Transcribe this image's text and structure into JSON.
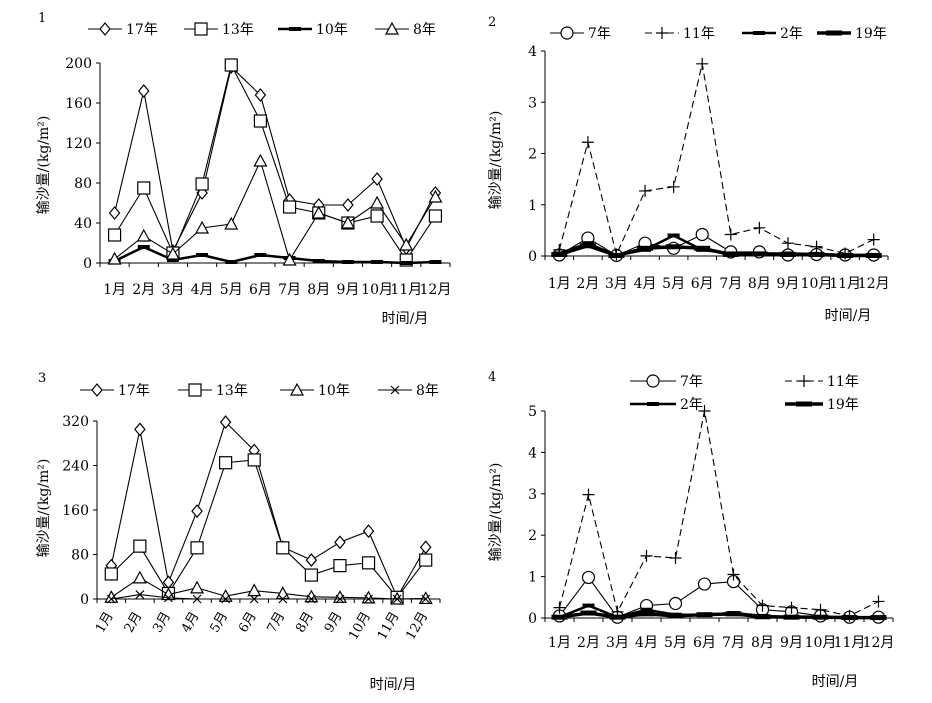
{
  "chart_data": [
    {
      "panel": "1",
      "type": "line",
      "categories": [
        "1月",
        "2月",
        "3月",
        "4月",
        "5月",
        "6月",
        "7月",
        "8月",
        "9月",
        "10月",
        "11月",
        "12月"
      ],
      "xlabel": "时间/月",
      "ylabel": "输沙量/(kg/m²)",
      "ylim": [
        0,
        200
      ],
      "yticks": [
        "0",
        "40",
        "80",
        "120",
        "160",
        "200"
      ],
      "legend_position": "top",
      "series": [
        {
          "name": "17年",
          "marker": "diamond",
          "values": [
            50,
            172,
            12,
            70,
            196,
            168,
            63,
            58,
            58,
            84,
            15,
            70
          ]
        },
        {
          "name": "13年",
          "marker": "square",
          "values": [
            28,
            75,
            10,
            79,
            198,
            142,
            56,
            50,
            40,
            47,
            3,
            47
          ]
        },
        {
          "name": "10年",
          "marker": "dash",
          "values": [
            2,
            16,
            3,
            8,
            1,
            8,
            5,
            2,
            1,
            1,
            0,
            1
          ]
        },
        {
          "name": "8年",
          "marker": "triangle",
          "values": [
            4,
            27,
            9,
            35,
            39,
            102,
            3,
            50,
            40,
            60,
            18,
            66
          ]
        }
      ]
    },
    {
      "panel": "2",
      "type": "line",
      "categories": [
        "1月",
        "2月",
        "3月",
        "4月",
        "5月",
        "6月",
        "7月",
        "8月",
        "9月",
        "10月",
        "11月",
        "12月"
      ],
      "xlabel": "时间/月",
      "ylabel": "输沙量/(kg/m²)",
      "ylim": [
        0,
        4
      ],
      "yticks": [
        "0",
        "1",
        "2",
        "3",
        "4"
      ],
      "legend_position": "top",
      "series": [
        {
          "name": "7年",
          "marker": "circle",
          "values": [
            0.02,
            0.35,
            0.01,
            0.25,
            0.15,
            0.42,
            0.08,
            0.08,
            0.02,
            0.03,
            0.02,
            0.02
          ]
        },
        {
          "name": "11年",
          "marker": "plus",
          "values": [
            0.12,
            2.22,
            0.03,
            1.27,
            1.35,
            3.75,
            0.42,
            0.55,
            0.25,
            0.18,
            0.05,
            0.32
          ]
        },
        {
          "name": "2年",
          "marker": "dash",
          "values": [
            0.05,
            0.25,
            0.01,
            0.12,
            0.4,
            0.12,
            0.05,
            0.05,
            0.05,
            0.04,
            0.02,
            0.02
          ]
        },
        {
          "name": "19年",
          "marker": "bar",
          "values": [
            0.03,
            0.2,
            0.01,
            0.15,
            0.18,
            0.15,
            0.03,
            0.04,
            0.03,
            0.03,
            0.01,
            0.01
          ]
        }
      ]
    },
    {
      "panel": "3",
      "type": "line",
      "categories": [
        "1月",
        "2月",
        "3月",
        "4月",
        "5月",
        "6月",
        "7月",
        "8月",
        "9月",
        "10月",
        "11月",
        "12月"
      ],
      "xlabel": "时间/月",
      "ylabel": "输沙量/(kg/m²)",
      "ylim": [
        0,
        320
      ],
      "yticks": [
        "0",
        "80",
        "160",
        "240",
        "320"
      ],
      "legend_position": "top",
      "series": [
        {
          "name": "17年",
          "marker": "diamond",
          "values": [
            60,
            305,
            30,
            158,
            318,
            267,
            93,
            70,
            102,
            122,
            3,
            93
          ]
        },
        {
          "name": "13年",
          "marker": "square",
          "values": [
            45,
            95,
            10,
            92,
            245,
            250,
            92,
            43,
            60,
            65,
            3,
            70
          ]
        },
        {
          "name": "10年",
          "marker": "triangle",
          "values": [
            3,
            38,
            8,
            20,
            5,
            15,
            10,
            4,
            3,
            2,
            0,
            1
          ]
        },
        {
          "name": "8年",
          "marker": "x",
          "values": [
            0,
            8,
            2,
            0,
            0,
            0,
            0,
            0,
            0,
            0,
            0,
            0
          ]
        }
      ]
    },
    {
      "panel": "4",
      "type": "line",
      "categories": [
        "1月",
        "2月",
        "3月",
        "4月",
        "5月",
        "6月",
        "7月",
        "8月",
        "9月",
        "10月",
        "11月",
        "12月"
      ],
      "xlabel": "时间/月",
      "ylabel": "输沙量/(kg/m²)",
      "ylim": [
        0,
        5
      ],
      "yticks": [
        "0",
        "1",
        "2",
        "3",
        "4",
        "5"
      ],
      "legend_position": "top",
      "series": [
        {
          "name": "7年",
          "marker": "circle",
          "values": [
            0.05,
            0.98,
            0.02,
            0.3,
            0.35,
            0.82,
            0.88,
            0.2,
            0.15,
            0.05,
            0.02,
            0.02
          ]
        },
        {
          "name": "11年",
          "marker": "plus",
          "values": [
            0.25,
            2.98,
            0.15,
            1.5,
            1.45,
            5.2,
            1.05,
            0.3,
            0.25,
            0.2,
            0.05,
            0.4
          ]
        },
        {
          "name": "2年",
          "marker": "dash",
          "values": [
            0.02,
            0.3,
            0.02,
            0.2,
            0.08,
            0.08,
            0.12,
            0.05,
            0.02,
            0.02,
            0.01,
            0.01
          ]
        },
        {
          "name": "19年",
          "marker": "bar",
          "values": [
            0.02,
            0.12,
            0.02,
            0.1,
            0.05,
            0.08,
            0.1,
            0.03,
            0.02,
            0.02,
            0.01,
            0.01
          ]
        }
      ]
    }
  ]
}
